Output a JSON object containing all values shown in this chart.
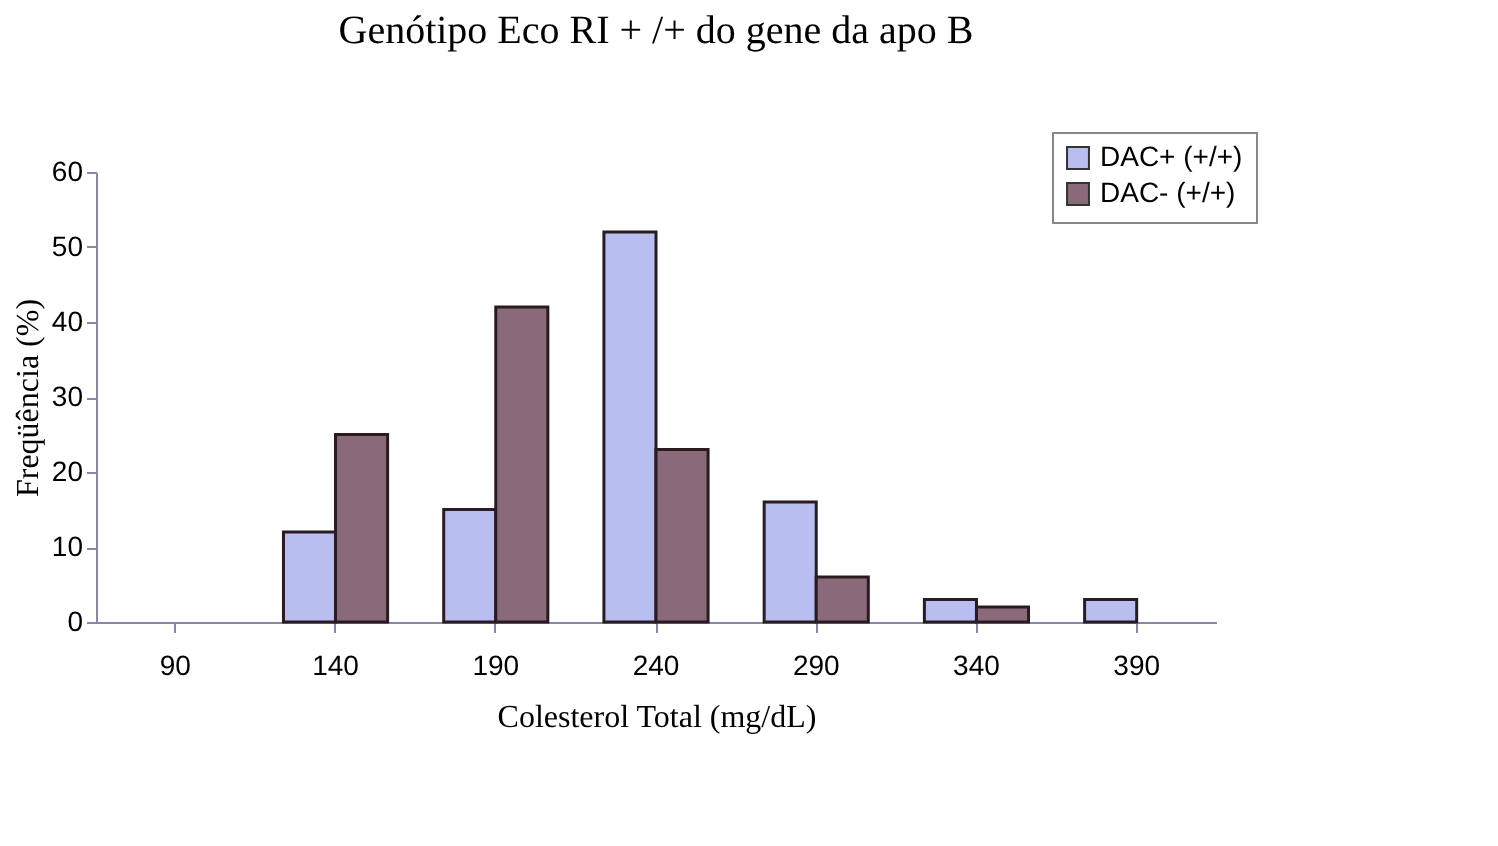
{
  "chart_data": {
    "type": "bar",
    "title": "Genótipo Eco RI + /+ do gene da apo B",
    "xlabel": "Colesterol Total (mg/dL)",
    "ylabel": "Freqüência (%)",
    "categories": [
      "90",
      "140",
      "190",
      "240",
      "290",
      "340",
      "390"
    ],
    "series": [
      {
        "name": "DAC+ (+/+)",
        "color": "#b8bff0",
        "values": [
          null,
          12,
          15,
          52,
          16,
          3,
          3
        ]
      },
      {
        "name": "DAC- (+/+)",
        "color": "#8a6a78",
        "values": [
          null,
          25,
          42,
          23,
          6,
          2,
          null
        ]
      }
    ],
    "ylim": [
      0,
      60
    ],
    "yticks": [
      0,
      10,
      20,
      30,
      40,
      50,
      60
    ],
    "grid": false,
    "legend": "top right"
  }
}
